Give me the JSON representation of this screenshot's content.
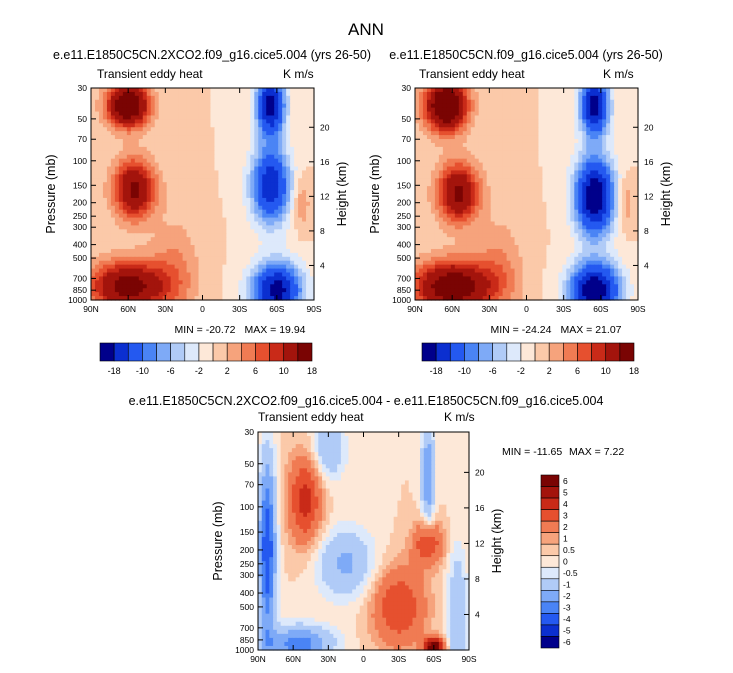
{
  "page_title": "ANN",
  "palette": [
    "#00008b",
    "#0b2fd0",
    "#2459f0",
    "#4a84f5",
    "#7eaaf7",
    "#b0cbf7",
    "#dde9fb",
    "#fde8d8",
    "#fbc9a9",
    "#f6a37c",
    "#f07b53",
    "#e6502f",
    "#c92a18",
    "#a3140c",
    "#7a0403"
  ],
  "chart_data": [
    {
      "type": "heatmap",
      "title": "e.e11.E1850C5CN.2XCO2.f09_g16.cice5.004 (yrs 26-50)",
      "left_label": "Transient eddy heat",
      "right_label": "K m/s",
      "xlabel": "",
      "ylabel": "Pressure (mb)",
      "ylabel_right": "Height (km)",
      "x_ticks": [
        "90N",
        "60N",
        "30N",
        "0",
        "30S",
        "60S",
        "90S"
      ],
      "y_ticks": [
        "30",
        "50",
        "70",
        "100",
        "150",
        "200",
        "250",
        "300",
        "400",
        "500",
        "700",
        "850",
        "1000"
      ],
      "y_ticks_right": [
        "20",
        "16",
        "12",
        "8",
        "4"
      ],
      "min_label": "MIN = -20.72",
      "max_label": "MAX =  19.94",
      "colorbar_labels": [
        "-18",
        "-10",
        "-6",
        "-2",
        "2",
        "6",
        "10",
        "18"
      ],
      "fields": [
        {
          "x": 60,
          "p": 40,
          "amp": 20,
          "sx": 12,
          "sy": 0.25
        },
        {
          "x": 55,
          "p": 160,
          "amp": 15,
          "sx": 12,
          "sy": 0.35
        },
        {
          "x": 60,
          "p": 800,
          "amp": 16,
          "sx": 22,
          "sy": 0.3
        },
        {
          "x": -55,
          "p": 40,
          "amp": -20,
          "sx": 8,
          "sy": 0.35
        },
        {
          "x": -55,
          "p": 150,
          "amp": -17,
          "sx": 11,
          "sy": 0.45
        },
        {
          "x": -60,
          "p": 850,
          "amp": -20,
          "sx": 14,
          "sy": 0.32
        },
        {
          "x": 22,
          "p": 600,
          "amp": 4,
          "sx": 14,
          "sy": 0.6
        },
        {
          "x": -80,
          "p": 200,
          "amp": 4,
          "sx": 5,
          "sy": 0.3
        }
      ]
    },
    {
      "type": "heatmap",
      "title": "e.e11.E1850C5CN.f09_g16.cice5.004 (yrs 26-50)",
      "left_label": "Transient eddy heat",
      "right_label": "K m/s",
      "xlabel": "",
      "ylabel": "Pressure (mb)",
      "ylabel_right": "Height (km)",
      "x_ticks": [
        "90N",
        "60N",
        "30N",
        "0",
        "30S",
        "60S",
        "90S"
      ],
      "y_ticks": [
        "30",
        "50",
        "70",
        "100",
        "150",
        "200",
        "250",
        "300",
        "400",
        "500",
        "700",
        "850",
        "1000"
      ],
      "y_ticks_right": [
        "20",
        "16",
        "12",
        "8",
        "4"
      ],
      "min_label": "MIN = -24.24",
      "max_label": "MAX =  21.07",
      "colorbar_labels": [
        "-18",
        "-10",
        "-6",
        "-2",
        "2",
        "6",
        "10",
        "18"
      ],
      "fields": [
        {
          "x": 65,
          "p": 40,
          "amp": 21,
          "sx": 12,
          "sy": 0.3
        },
        {
          "x": 55,
          "p": 170,
          "amp": 15,
          "sx": 12,
          "sy": 0.35
        },
        {
          "x": 60,
          "p": 800,
          "amp": 18,
          "sx": 22,
          "sy": 0.3
        },
        {
          "x": -55,
          "p": 40,
          "amp": -20,
          "sx": 8,
          "sy": 0.35
        },
        {
          "x": -55,
          "p": 180,
          "amp": -22,
          "sx": 11,
          "sy": 0.45
        },
        {
          "x": -55,
          "p": 850,
          "amp": -22,
          "sx": 14,
          "sy": 0.32
        },
        {
          "x": 22,
          "p": 600,
          "amp": 4,
          "sx": 14,
          "sy": 0.6
        },
        {
          "x": -80,
          "p": 200,
          "amp": 4,
          "sx": 5,
          "sy": 0.3
        }
      ]
    },
    {
      "type": "heatmap",
      "title": "e.e11.E1850C5CN.2XCO2.f09_g16.cice5.004 - e.e11.E1850C5CN.f09_g16.cice5.004",
      "left_label": "Transient eddy heat",
      "right_label": "K m/s",
      "xlabel": "",
      "ylabel": "Pressure (mb)",
      "ylabel_right": "Height (km)",
      "x_ticks": [
        "90N",
        "60N",
        "30N",
        "0",
        "30S",
        "60S",
        "90S"
      ],
      "y_ticks": [
        "30",
        "50",
        "70",
        "100",
        "150",
        "200",
        "250",
        "300",
        "400",
        "500",
        "700",
        "850",
        "1000"
      ],
      "y_ticks_right": [
        "20",
        "16",
        "12",
        "8",
        "4"
      ],
      "min_label": "MIN = -11.65",
      "max_label": "MAX =   7.22",
      "colorbar_labels": [
        "6",
        "5",
        "4",
        "3",
        "2",
        "1",
        "0.5",
        "0",
        "-0.5",
        "-1",
        "-2",
        "-3",
        "-4",
        "-5",
        "-6"
      ],
      "fields": [
        {
          "x": 82,
          "p": 200,
          "amp": -5,
          "sx": 5,
          "sy": 1.0
        },
        {
          "x": 50,
          "p": 90,
          "amp": 3.5,
          "sx": 10,
          "sy": 0.5
        },
        {
          "x": 30,
          "p": 40,
          "amp": -2,
          "sx": 10,
          "sy": 0.35
        },
        {
          "x": 55,
          "p": 900,
          "amp": -3.5,
          "sx": 20,
          "sy": 0.2
        },
        {
          "x": 15,
          "p": 250,
          "amp": -2.2,
          "sx": 18,
          "sy": 0.4
        },
        {
          "x": -30,
          "p": 500,
          "amp": 3,
          "sx": 16,
          "sy": 0.45
        },
        {
          "x": -55,
          "p": 180,
          "amp": 3,
          "sx": 9,
          "sy": 0.25
        },
        {
          "x": -55,
          "p": 60,
          "amp": -3,
          "sx": 4,
          "sy": 0.6
        },
        {
          "x": -60,
          "p": 950,
          "amp": 6,
          "sx": 6,
          "sy": 0.1
        },
        {
          "x": -80,
          "p": 600,
          "amp": -2,
          "sx": 6,
          "sy": 0.8
        }
      ]
    }
  ]
}
